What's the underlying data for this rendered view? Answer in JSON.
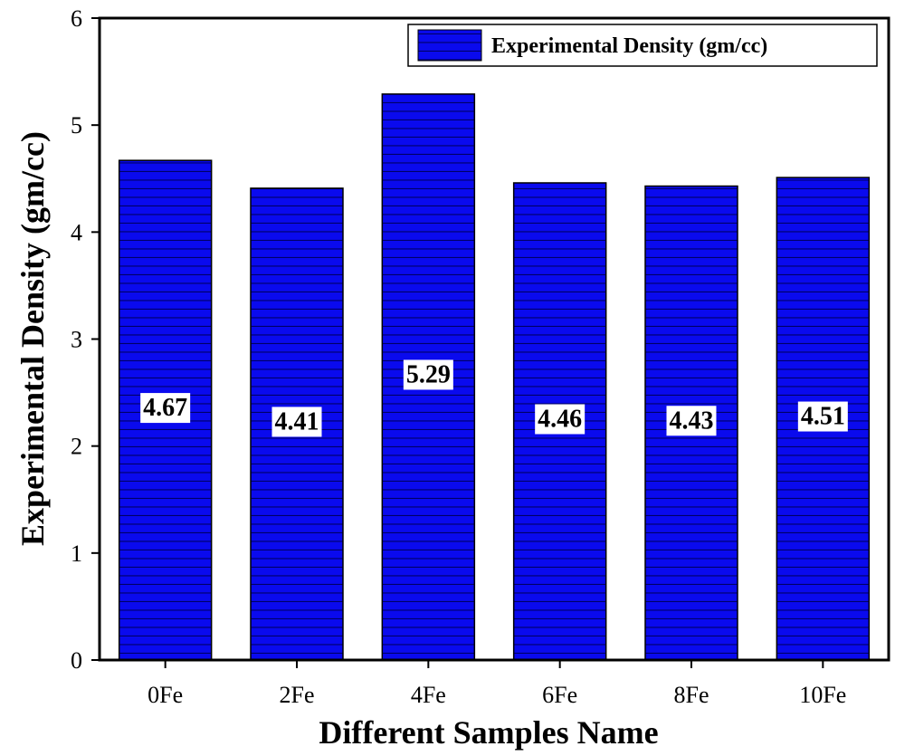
{
  "chart_data": {
    "type": "bar",
    "categories": [
      "0Fe",
      "2Fe",
      "4Fe",
      "6Fe",
      "8Fe",
      "10Fe"
    ],
    "series": [
      {
        "name": "Experimental Density (gm/cc)",
        "values": [
          4.67,
          4.41,
          5.29,
          4.46,
          4.43,
          4.51
        ]
      }
    ],
    "data_labels": [
      "4.67",
      "4.41",
      "5.29",
      "4.46",
      "4.43",
      "4.51"
    ],
    "xlabel": "Different Samples Name",
    "ylabel": "Experimental Density (gm/cc)",
    "ylim": [
      0,
      6
    ],
    "yticks": [
      "0",
      "1",
      "2",
      "3",
      "4",
      "5",
      "6"
    ],
    "grid": false,
    "legend_position": "top-right",
    "colors": {
      "bar_fill": "#0a0aee",
      "bar_hatch": "#000066",
      "axis": "#000000"
    }
  }
}
